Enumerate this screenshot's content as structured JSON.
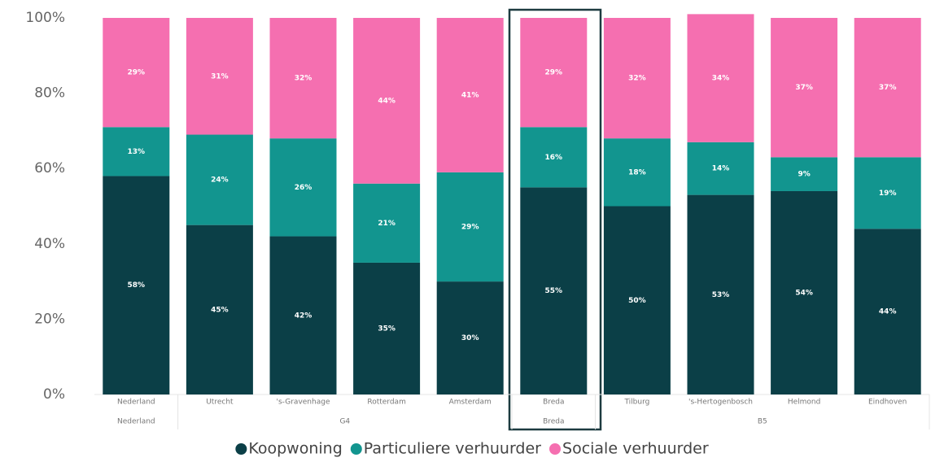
{
  "chart_data": {
    "type": "stacked_bar",
    "categories": [
      "Nederland",
      "Utrecht",
      "'s-Gravenhage",
      "Rotterdam",
      "Amsterdam",
      "Breda",
      "Tilburg",
      "'s-Hertogenbosch",
      "Helmond",
      "Eindhoven"
    ],
    "groups": [
      {
        "name": "Nederland",
        "size": 1
      },
      {
        "name": "G4",
        "size": 4
      },
      {
        "name": "Breda",
        "size": 1
      },
      {
        "name": "B5",
        "size": 4
      }
    ],
    "series": [
      {
        "name": "Koopwoning",
        "color": "#0b3f47",
        "values": [
          58,
          45,
          42,
          35,
          30,
          55,
          50,
          53,
          54,
          44
        ],
        "value_labels": [
          "58%",
          "45%",
          "42%",
          "35%",
          "30%",
          "55%",
          "50%",
          "53%",
          "54%",
          "44%"
        ]
      },
      {
        "name": "Particuliere verhuurder",
        "color": "#12958f",
        "values": [
          13,
          24,
          26,
          21,
          29,
          16,
          18,
          14,
          9,
          19
        ],
        "value_labels": [
          "13%",
          "24%",
          "26%",
          "21%",
          "29%",
          "16%",
          "18%",
          "14%",
          "9%",
          "19%"
        ]
      },
      {
        "name": "Sociale verhuurder",
        "color": "#f56fb0",
        "values": [
          29,
          31,
          32,
          44,
          41,
          29,
          32,
          34,
          37,
          37
        ],
        "value_labels": [
          "29%",
          "31%",
          "32%",
          "44%",
          "41%",
          "29%",
          "32%",
          "34%",
          "37%",
          "37%"
        ]
      }
    ],
    "ylim": [
      0,
      100
    ],
    "yticks": [
      {
        "value": 0,
        "label": "0%"
      },
      {
        "value": 20,
        "label": "20%"
      },
      {
        "value": 40,
        "label": "40%"
      },
      {
        "value": 60,
        "label": "60%"
      },
      {
        "value": 80,
        "label": "80%"
      },
      {
        "value": 100,
        "label": "100%"
      }
    ],
    "legend": "bottom"
  }
}
